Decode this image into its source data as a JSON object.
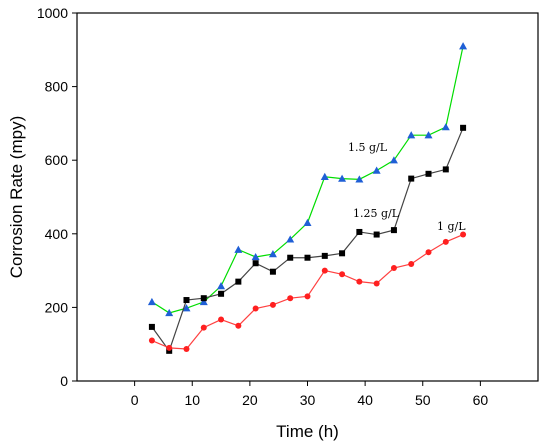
{
  "chart_data": {
    "type": "line",
    "xlabel": "Time (h)",
    "ylabel": "Corrosion Rate (mpy)",
    "xlim": [
      -10,
      70
    ],
    "ylim": [
      0,
      1000
    ],
    "xticks": [
      0,
      10,
      20,
      30,
      40,
      50,
      60
    ],
    "yticks": [
      0,
      200,
      400,
      600,
      800,
      1000
    ],
    "grid": false,
    "series": [
      {
        "name": "1.5 g/L",
        "color": "#00dd00",
        "marker_color": "#1f5fd6",
        "marker": "triangle",
        "x": [
          3,
          6,
          9,
          12,
          15,
          18,
          21,
          24,
          27,
          30,
          33,
          36,
          39,
          42,
          45,
          48,
          51,
          54,
          57
        ],
        "y": [
          215,
          185,
          198,
          215,
          258,
          357,
          337,
          345,
          385,
          430,
          555,
          550,
          548,
          572,
          600,
          668,
          668,
          690,
          910
        ]
      },
      {
        "name": "1.25 g/L",
        "color": "#444444",
        "marker_color": "#000000",
        "marker": "square",
        "x": [
          3,
          6,
          9,
          12,
          15,
          18,
          21,
          24,
          27,
          30,
          33,
          36,
          39,
          42,
          45,
          48,
          51,
          54,
          57
        ],
        "y": [
          147,
          82,
          220,
          225,
          237,
          270,
          320,
          297,
          335,
          335,
          340,
          347,
          405,
          398,
          410,
          550,
          563,
          575,
          688
        ]
      },
      {
        "name": "1 g/L",
        "color": "#ff4040",
        "marker_color": "#ff2020",
        "marker": "circle",
        "x": [
          3,
          6,
          9,
          12,
          15,
          18,
          21,
          24,
          27,
          30,
          33,
          36,
          39,
          42,
          45,
          48,
          51,
          54,
          57
        ],
        "y": [
          110,
          90,
          87,
          145,
          167,
          150,
          197,
          207,
          225,
          230,
          300,
          290,
          270,
          265,
          307,
          318,
          350,
          378,
          398
        ]
      }
    ]
  }
}
